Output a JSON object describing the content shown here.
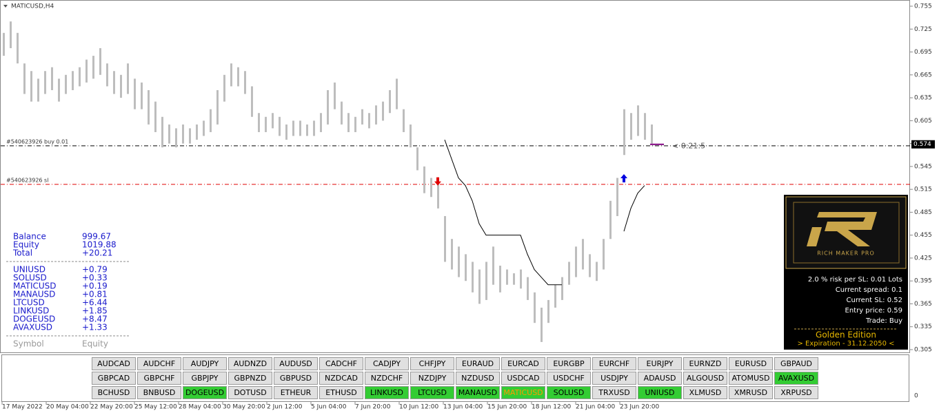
{
  "chart_data": {
    "type": "candlestick",
    "title": "MATICUSD,H4",
    "color": "#bdbdbd",
    "ylim": [
      0.305,
      0.755
    ],
    "yticks": [
      0.755,
      0.725,
      0.695,
      0.665,
      0.635,
      0.605,
      0.575,
      0.545,
      0.515,
      0.485,
      0.455,
      0.425,
      0.395,
      0.365,
      0.335,
      0.305
    ],
    "xlabels": [
      "17 May 2022",
      "20 May 04:00",
      "22 May 20:00",
      "25 May 12:00",
      "28 May 04:00",
      "30 May 20:00",
      "2 Jun 12:00",
      "5 Jun 04:00",
      "7 Jun 20:00",
      "10 Jun 12:00",
      "13 Jun 04:00",
      "15 Jun 20:00",
      "18 Jun 12:00",
      "21 Jun 04:00",
      "23 Jun 20:00"
    ],
    "high": [
      0.72,
      0.735,
      0.72,
      0.68,
      0.67,
      0.66,
      0.67,
      0.675,
      0.66,
      0.665,
      0.67,
      0.675,
      0.685,
      0.69,
      0.7,
      0.68,
      0.67,
      0.665,
      0.68,
      0.66,
      0.655,
      0.645,
      0.63,
      0.61,
      0.6,
      0.595,
      0.6,
      0.595,
      0.6,
      0.605,
      0.62,
      0.645,
      0.665,
      0.68,
      0.675,
      0.67,
      0.65,
      0.615,
      0.61,
      0.615,
      0.61,
      0.6,
      0.605,
      0.605,
      0.6,
      0.605,
      0.615,
      0.645,
      0.655,
      0.63,
      0.615,
      0.61,
      0.62,
      0.615,
      0.625,
      0.63,
      0.645,
      0.66,
      0.62,
      0.6,
      0.57,
      0.545,
      0.53,
      0.525,
      0.48,
      0.45,
      0.44,
      0.43,
      0.42,
      0.41,
      0.42,
      0.44,
      0.415,
      0.41,
      0.405,
      0.41,
      0.4,
      0.38,
      0.36,
      0.37,
      0.39,
      0.4,
      0.42,
      0.44,
      0.45,
      0.43,
      0.42,
      0.45,
      0.5,
      0.53,
      0.62,
      0.615,
      0.625,
      0.615,
      0.6
    ],
    "low": [
      0.69,
      0.7,
      0.68,
      0.64,
      0.63,
      0.63,
      0.64,
      0.645,
      0.63,
      0.64,
      0.645,
      0.65,
      0.655,
      0.66,
      0.665,
      0.65,
      0.64,
      0.635,
      0.64,
      0.62,
      0.62,
      0.6,
      0.59,
      0.57,
      0.575,
      0.57,
      0.575,
      0.575,
      0.58,
      0.585,
      0.59,
      0.6,
      0.63,
      0.65,
      0.65,
      0.64,
      0.61,
      0.59,
      0.59,
      0.595,
      0.585,
      0.58,
      0.585,
      0.585,
      0.585,
      0.585,
      0.59,
      0.6,
      0.62,
      0.6,
      0.59,
      0.59,
      0.6,
      0.595,
      0.6,
      0.605,
      0.615,
      0.62,
      0.59,
      0.57,
      0.54,
      0.51,
      0.505,
      0.49,
      0.42,
      0.41,
      0.4,
      0.395,
      0.38,
      0.365,
      0.37,
      0.39,
      0.38,
      0.39,
      0.39,
      0.385,
      0.37,
      0.34,
      0.315,
      0.34,
      0.36,
      0.37,
      0.39,
      0.4,
      0.41,
      0.4,
      0.395,
      0.41,
      0.45,
      0.48,
      0.56,
      0.58,
      0.585,
      0.58,
      0.575
    ],
    "trail": [
      null,
      null,
      null,
      null,
      null,
      null,
      null,
      null,
      null,
      null,
      null,
      null,
      null,
      null,
      null,
      null,
      null,
      null,
      null,
      null,
      null,
      null,
      null,
      null,
      null,
      null,
      null,
      null,
      null,
      null,
      null,
      null,
      null,
      null,
      null,
      null,
      null,
      null,
      null,
      null,
      null,
      null,
      null,
      null,
      null,
      null,
      null,
      null,
      null,
      null,
      null,
      null,
      null,
      null,
      null,
      null,
      null,
      null,
      null,
      null,
      null,
      null,
      null,
      null,
      0.58,
      0.555,
      0.53,
      0.52,
      0.5,
      0.47,
      0.455,
      0.455,
      0.455,
      0.455,
      0.455,
      0.455,
      0.43,
      0.41,
      0.4,
      0.39,
      0.39,
      0.39,
      null,
      null,
      null,
      null,
      null,
      null,
      null,
      null,
      0.46,
      0.49,
      0.51,
      0.52,
      null
    ],
    "trail_color": "#000000",
    "arrows": [
      {
        "x": 63,
        "value": 0.52,
        "color": "#e00000",
        "dir": "down"
      },
      {
        "x": 90,
        "value": 0.535,
        "color": "#0000e0",
        "dir": "up"
      }
    ],
    "lines": [
      {
        "label": "#540623926 buy 0.01",
        "value": 0.572,
        "color": "#000000"
      },
      {
        "label": "#540623926 sl",
        "value": 0.5215,
        "color": "#e00000"
      }
    ],
    "price": {
      "value": 0.574,
      "label": "0.574"
    },
    "timer": "< 0:21:5",
    "sub_axis": "0"
  },
  "account": {
    "summary": [
      [
        "Balance",
        "999.67"
      ],
      [
        "Equity",
        "1019.88"
      ],
      [
        "Total",
        "+20.21"
      ]
    ],
    "symbols": [
      [
        "UNIUSD",
        "+0.79"
      ],
      [
        "SOLUSD",
        "+0.33"
      ],
      [
        "MATICUSD",
        "+0.19"
      ],
      [
        "MANAUSD",
        "+0.81"
      ],
      [
        "LTCUSD",
        "+6.44"
      ],
      [
        "LINKUSD",
        "+1.85"
      ],
      [
        "DOGEUSD",
        "+8.47"
      ],
      [
        "AVAXUSD",
        "+1.33"
      ]
    ],
    "header": [
      "Symbol",
      "Equity"
    ]
  },
  "panel": {
    "brand": "RICH MAKER PRO",
    "lines": [
      "2.0 % risk per SL: 0.01 Lots",
      "Current spread: 0.1",
      "Current SL: 0.52",
      "Entry price: 0.59",
      "Trade: Buy"
    ],
    "edition": "Golden Edition",
    "expiration": "> Expiration - 31.12.2050 <"
  },
  "buttons": [
    [
      {
        "label": "AUDCAD"
      },
      {
        "label": "AUDCHF"
      },
      {
        "label": "AUDJPY"
      },
      {
        "label": "AUDNZD"
      },
      {
        "label": "AUDUSD"
      },
      {
        "label": "CADCHF"
      },
      {
        "label": "CADJPY"
      },
      {
        "label": "CHFJPY"
      },
      {
        "label": "EURAUD"
      },
      {
        "label": "EURCAD"
      },
      {
        "label": "EURGBP"
      },
      {
        "label": "EURCHF"
      },
      {
        "label": "EURJPY"
      },
      {
        "label": "EURNZD"
      },
      {
        "label": "EURUSD"
      },
      {
        "label": "GBPAUD"
      }
    ],
    [
      {
        "label": "GBPCAD"
      },
      {
        "label": "GBPCHF"
      },
      {
        "label": "GBPJPY"
      },
      {
        "label": "GBPNZD"
      },
      {
        "label": "GBPUSD"
      },
      {
        "label": "NZDCAD"
      },
      {
        "label": "NZDCHF"
      },
      {
        "label": "NZDJPY"
      },
      {
        "label": "NZDUSD"
      },
      {
        "label": "USDCAD"
      },
      {
        "label": "USDCHF"
      },
      {
        "label": "USDJPY"
      },
      {
        "label": "ADAUSD"
      },
      {
        "label": "ALGOUSD"
      },
      {
        "label": "ATOMUSD"
      },
      {
        "label": "AVAXUSD",
        "active": true
      }
    ],
    [
      {
        "label": "BCHUSD"
      },
      {
        "label": "BNBUSD"
      },
      {
        "label": "DOGEUSD",
        "active": true
      },
      {
        "label": "DOTUSD"
      },
      {
        "label": "ETHEUR"
      },
      {
        "label": "ETHUSD"
      },
      {
        "label": "LINKUSD",
        "active": true
      },
      {
        "label": "LTCUSD",
        "active": true
      },
      {
        "label": "MANAUSD",
        "active": true
      },
      {
        "label": "MATICUSD",
        "active": true,
        "current": true
      },
      {
        "label": "SOLUSD",
        "active": true
      },
      {
        "label": "TRXUSD"
      },
      {
        "label": "UNIUSD",
        "active": true
      },
      {
        "label": "XLMUSD"
      },
      {
        "label": "XMRUSD"
      },
      {
        "label": "XRPUSD"
      }
    ]
  ]
}
